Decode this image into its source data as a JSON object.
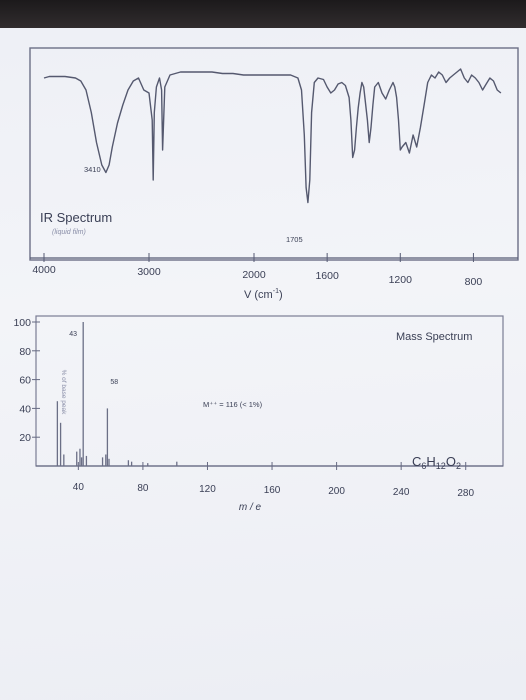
{
  "chart_data": [
    {
      "type": "line",
      "title": "IR Spectrum",
      "subtitle": "(liquid film)",
      "xlabel": "V (cm",
      "xlabel_sup": "-1",
      "xlabel_close": ")",
      "x_ticks": [
        "4000",
        "3000",
        "2000",
        "1600",
        "1200",
        "800"
      ],
      "xlim": [
        4000,
        600
      ],
      "annotations": [
        {
          "text": "3410",
          "x": 3410
        },
        {
          "text": "1705",
          "x": 1705
        }
      ],
      "series": [
        {
          "x": [
            4000,
            3950,
            3900,
            3800,
            3700,
            3650,
            3600,
            3550,
            3500,
            3450,
            3410,
            3380,
            3350,
            3300,
            3250,
            3200,
            3150,
            3100,
            3050,
            3000,
            2970,
            2960,
            2950,
            2930,
            2900,
            2880,
            2870,
            2850,
            2800,
            2700,
            2600,
            2500,
            2400,
            2300,
            2200,
            2100,
            2000,
            1900,
            1850,
            1800,
            1760,
            1740,
            1725,
            1715,
            1705,
            1695,
            1685,
            1670,
            1650,
            1620,
            1600,
            1580,
            1560,
            1540,
            1520,
            1500,
            1480,
            1470,
            1460,
            1450,
            1440,
            1430,
            1420,
            1410,
            1400,
            1380,
            1370,
            1360,
            1350,
            1340,
            1320,
            1300,
            1280,
            1260,
            1240,
            1230,
            1220,
            1210,
            1200,
            1190,
            1170,
            1150,
            1130,
            1110,
            1090,
            1070,
            1050,
            1030,
            1010,
            990,
            970,
            950,
            930,
            910,
            890,
            870,
            850,
            830,
            810,
            790,
            770,
            750,
            730,
            710,
            690,
            670,
            650
          ],
          "y": [
            88,
            89,
            89,
            89,
            88,
            86,
            80,
            65,
            45,
            30,
            25,
            30,
            42,
            58,
            70,
            80,
            86,
            88,
            80,
            78,
            60,
            20,
            65,
            82,
            88,
            80,
            40,
            82,
            90,
            92,
            92,
            92,
            92,
            91,
            91,
            90,
            90,
            90,
            90,
            90,
            88,
            80,
            50,
            15,
            5,
            20,
            65,
            85,
            88,
            87,
            82,
            78,
            80,
            84,
            85,
            83,
            75,
            60,
            35,
            40,
            55,
            68,
            78,
            85,
            82,
            60,
            45,
            55,
            70,
            82,
            85,
            78,
            74,
            80,
            85,
            82,
            75,
            60,
            40,
            42,
            45,
            38,
            50,
            42,
            55,
            70,
            85,
            90,
            88,
            92,
            90,
            85,
            88,
            90,
            92,
            94,
            88,
            85,
            90,
            88,
            85,
            80,
            84,
            88,
            86,
            80,
            78
          ]
        }
      ]
    },
    {
      "type": "bar",
      "title": "Mass Spectrum",
      "formula": "C6H12O2",
      "formula_parts": {
        "C": "C",
        "c_n": "6",
        "H": "H",
        "h_n": "12",
        "O": "O",
        "o_n": "2"
      },
      "xlabel": "m / e",
      "ylabel": "% of base peak",
      "x_ticks": [
        "40",
        "80",
        "120",
        "160",
        "200",
        "240",
        "280"
      ],
      "y_ticks": [
        "100",
        "80",
        "60",
        "40",
        "20"
      ],
      "xlim": [
        15,
        300
      ],
      "ylim": [
        0,
        100
      ],
      "annotations": [
        {
          "text": "43",
          "x": 43
        },
        {
          "text": "58",
          "x": 58
        },
        {
          "text": "M⁺⁺ = 116 (< 1%)",
          "x": 116
        }
      ],
      "peaks": [
        {
          "x": 27,
          "y": 45
        },
        {
          "x": 29,
          "y": 30
        },
        {
          "x": 31,
          "y": 8
        },
        {
          "x": 39,
          "y": 10
        },
        {
          "x": 41,
          "y": 12
        },
        {
          "x": 42,
          "y": 6
        },
        {
          "x": 43,
          "y": 100
        },
        {
          "x": 45,
          "y": 7
        },
        {
          "x": 55,
          "y": 6
        },
        {
          "x": 57,
          "y": 8
        },
        {
          "x": 58,
          "y": 40
        },
        {
          "x": 59,
          "y": 5
        },
        {
          "x": 71,
          "y": 4
        },
        {
          "x": 73,
          "y": 3
        },
        {
          "x": 83,
          "y": 2
        },
        {
          "x": 101,
          "y": 3
        }
      ]
    }
  ]
}
